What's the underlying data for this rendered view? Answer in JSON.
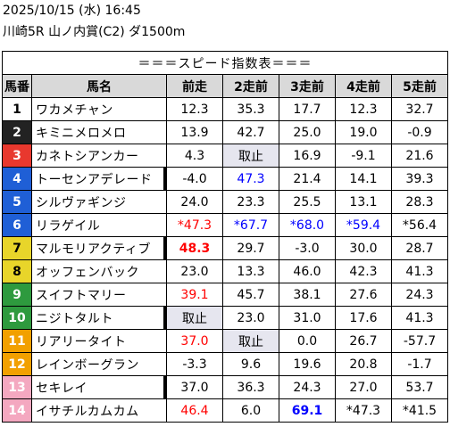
{
  "header": {
    "line1": "2025/10/15 (水) 16:45",
    "line2": "川崎5R 山ノ内賞(C2) ダ1500m"
  },
  "table": {
    "title": "＝＝＝スピード指数表＝＝＝",
    "columns": [
      "馬番",
      "馬名",
      "前走",
      "2走前",
      "3走前",
      "4走前",
      "5走前"
    ],
    "gate_colors": [
      "#ffffff",
      "#222222",
      "#e8382e",
      "#1f5fd6",
      "#e8d52a",
      "#2e9a3e",
      "#f2a000",
      "#f4a8c0"
    ],
    "rows": [
      {
        "num": "1",
        "name": "ワカメチャン",
        "gate": 0,
        "mark": false,
        "cells": [
          {
            "v": "12.3"
          },
          {
            "v": "35.3"
          },
          {
            "v": "17.7"
          },
          {
            "v": "12.3"
          },
          {
            "v": "32.7"
          }
        ]
      },
      {
        "num": "2",
        "name": "キミニメロメロ",
        "gate": 1,
        "mark": false,
        "cells": [
          {
            "v": "13.9"
          },
          {
            "v": "42.7"
          },
          {
            "v": "25.0"
          },
          {
            "v": "19.0"
          },
          {
            "v": "-0.9"
          }
        ]
      },
      {
        "num": "3",
        "name": "カネトシアンカー",
        "gate": 2,
        "mark": false,
        "cells": [
          {
            "v": "4.3"
          },
          {
            "v": "取止",
            "gray": true
          },
          {
            "v": "16.9"
          },
          {
            "v": "-9.1"
          },
          {
            "v": "21.6"
          }
        ]
      },
      {
        "num": "4",
        "name": "トーセンアデレード",
        "gate": 3,
        "mark": true,
        "cells": [
          {
            "v": "-4.0"
          },
          {
            "v": "47.3",
            "color": "blue"
          },
          {
            "v": "21.4"
          },
          {
            "v": "14.1"
          },
          {
            "v": "39.3"
          }
        ]
      },
      {
        "num": "5",
        "name": "シルヴァギンジ",
        "gate": 3,
        "mark": false,
        "cells": [
          {
            "v": "24.0"
          },
          {
            "v": "23.3"
          },
          {
            "v": "25.5"
          },
          {
            "v": "13.1"
          },
          {
            "v": "28.3"
          }
        ]
      },
      {
        "num": "6",
        "name": "リラゲイル",
        "gate": 3,
        "mark": false,
        "cells": [
          {
            "v": "*47.3",
            "color": "red"
          },
          {
            "v": "*67.7",
            "color": "blue"
          },
          {
            "v": "*68.0",
            "color": "blue"
          },
          {
            "v": "*59.4",
            "color": "blue"
          },
          {
            "v": "*56.4"
          }
        ]
      },
      {
        "num": "7",
        "name": "マルモリアクティブ",
        "gate": 4,
        "mark": true,
        "cells": [
          {
            "v": "48.3",
            "color": "red",
            "bold": true
          },
          {
            "v": "29.7"
          },
          {
            "v": "-3.0"
          },
          {
            "v": "30.0"
          },
          {
            "v": "28.7"
          }
        ]
      },
      {
        "num": "8",
        "name": "オッフェンバック",
        "gate": 4,
        "mark": false,
        "cells": [
          {
            "v": "23.0"
          },
          {
            "v": "13.3"
          },
          {
            "v": "46.0"
          },
          {
            "v": "42.3"
          },
          {
            "v": "41.3"
          }
        ]
      },
      {
        "num": "9",
        "name": "スイフトマリー",
        "gate": 5,
        "mark": false,
        "cells": [
          {
            "v": "39.1",
            "color": "red"
          },
          {
            "v": "45.7"
          },
          {
            "v": "38.1"
          },
          {
            "v": "27.6"
          },
          {
            "v": "24.3"
          }
        ]
      },
      {
        "num": "10",
        "name": "ニジトタルト",
        "gate": 5,
        "mark": true,
        "cells": [
          {
            "v": "取止",
            "gray": true
          },
          {
            "v": "23.0"
          },
          {
            "v": "31.0"
          },
          {
            "v": "17.6"
          },
          {
            "v": "41.3"
          }
        ]
      },
      {
        "num": "11",
        "name": "リアリータイト",
        "gate": 6,
        "mark": false,
        "cells": [
          {
            "v": "37.0",
            "color": "red"
          },
          {
            "v": "取止",
            "gray": true
          },
          {
            "v": "0.0"
          },
          {
            "v": "26.7"
          },
          {
            "v": "-57.7"
          }
        ]
      },
      {
        "num": "12",
        "name": "レインボーグラン",
        "gate": 6,
        "mark": false,
        "cells": [
          {
            "v": "-3.3"
          },
          {
            "v": "9.6"
          },
          {
            "v": "19.6"
          },
          {
            "v": "20.8"
          },
          {
            "v": "-1.7"
          }
        ]
      },
      {
        "num": "13",
        "name": "セキレイ",
        "gate": 7,
        "mark": true,
        "cells": [
          {
            "v": "37.0"
          },
          {
            "v": "36.3"
          },
          {
            "v": "24.3"
          },
          {
            "v": "27.0"
          },
          {
            "v": "53.7"
          }
        ]
      },
      {
        "num": "14",
        "name": "イサチルカムカム",
        "gate": 7,
        "mark": false,
        "cells": [
          {
            "v": "46.4",
            "color": "red"
          },
          {
            "v": "6.0"
          },
          {
            "v": "69.1",
            "color": "blue",
            "bold": true
          },
          {
            "v": "*47.3"
          },
          {
            "v": "*41.5"
          }
        ]
      }
    ]
  }
}
